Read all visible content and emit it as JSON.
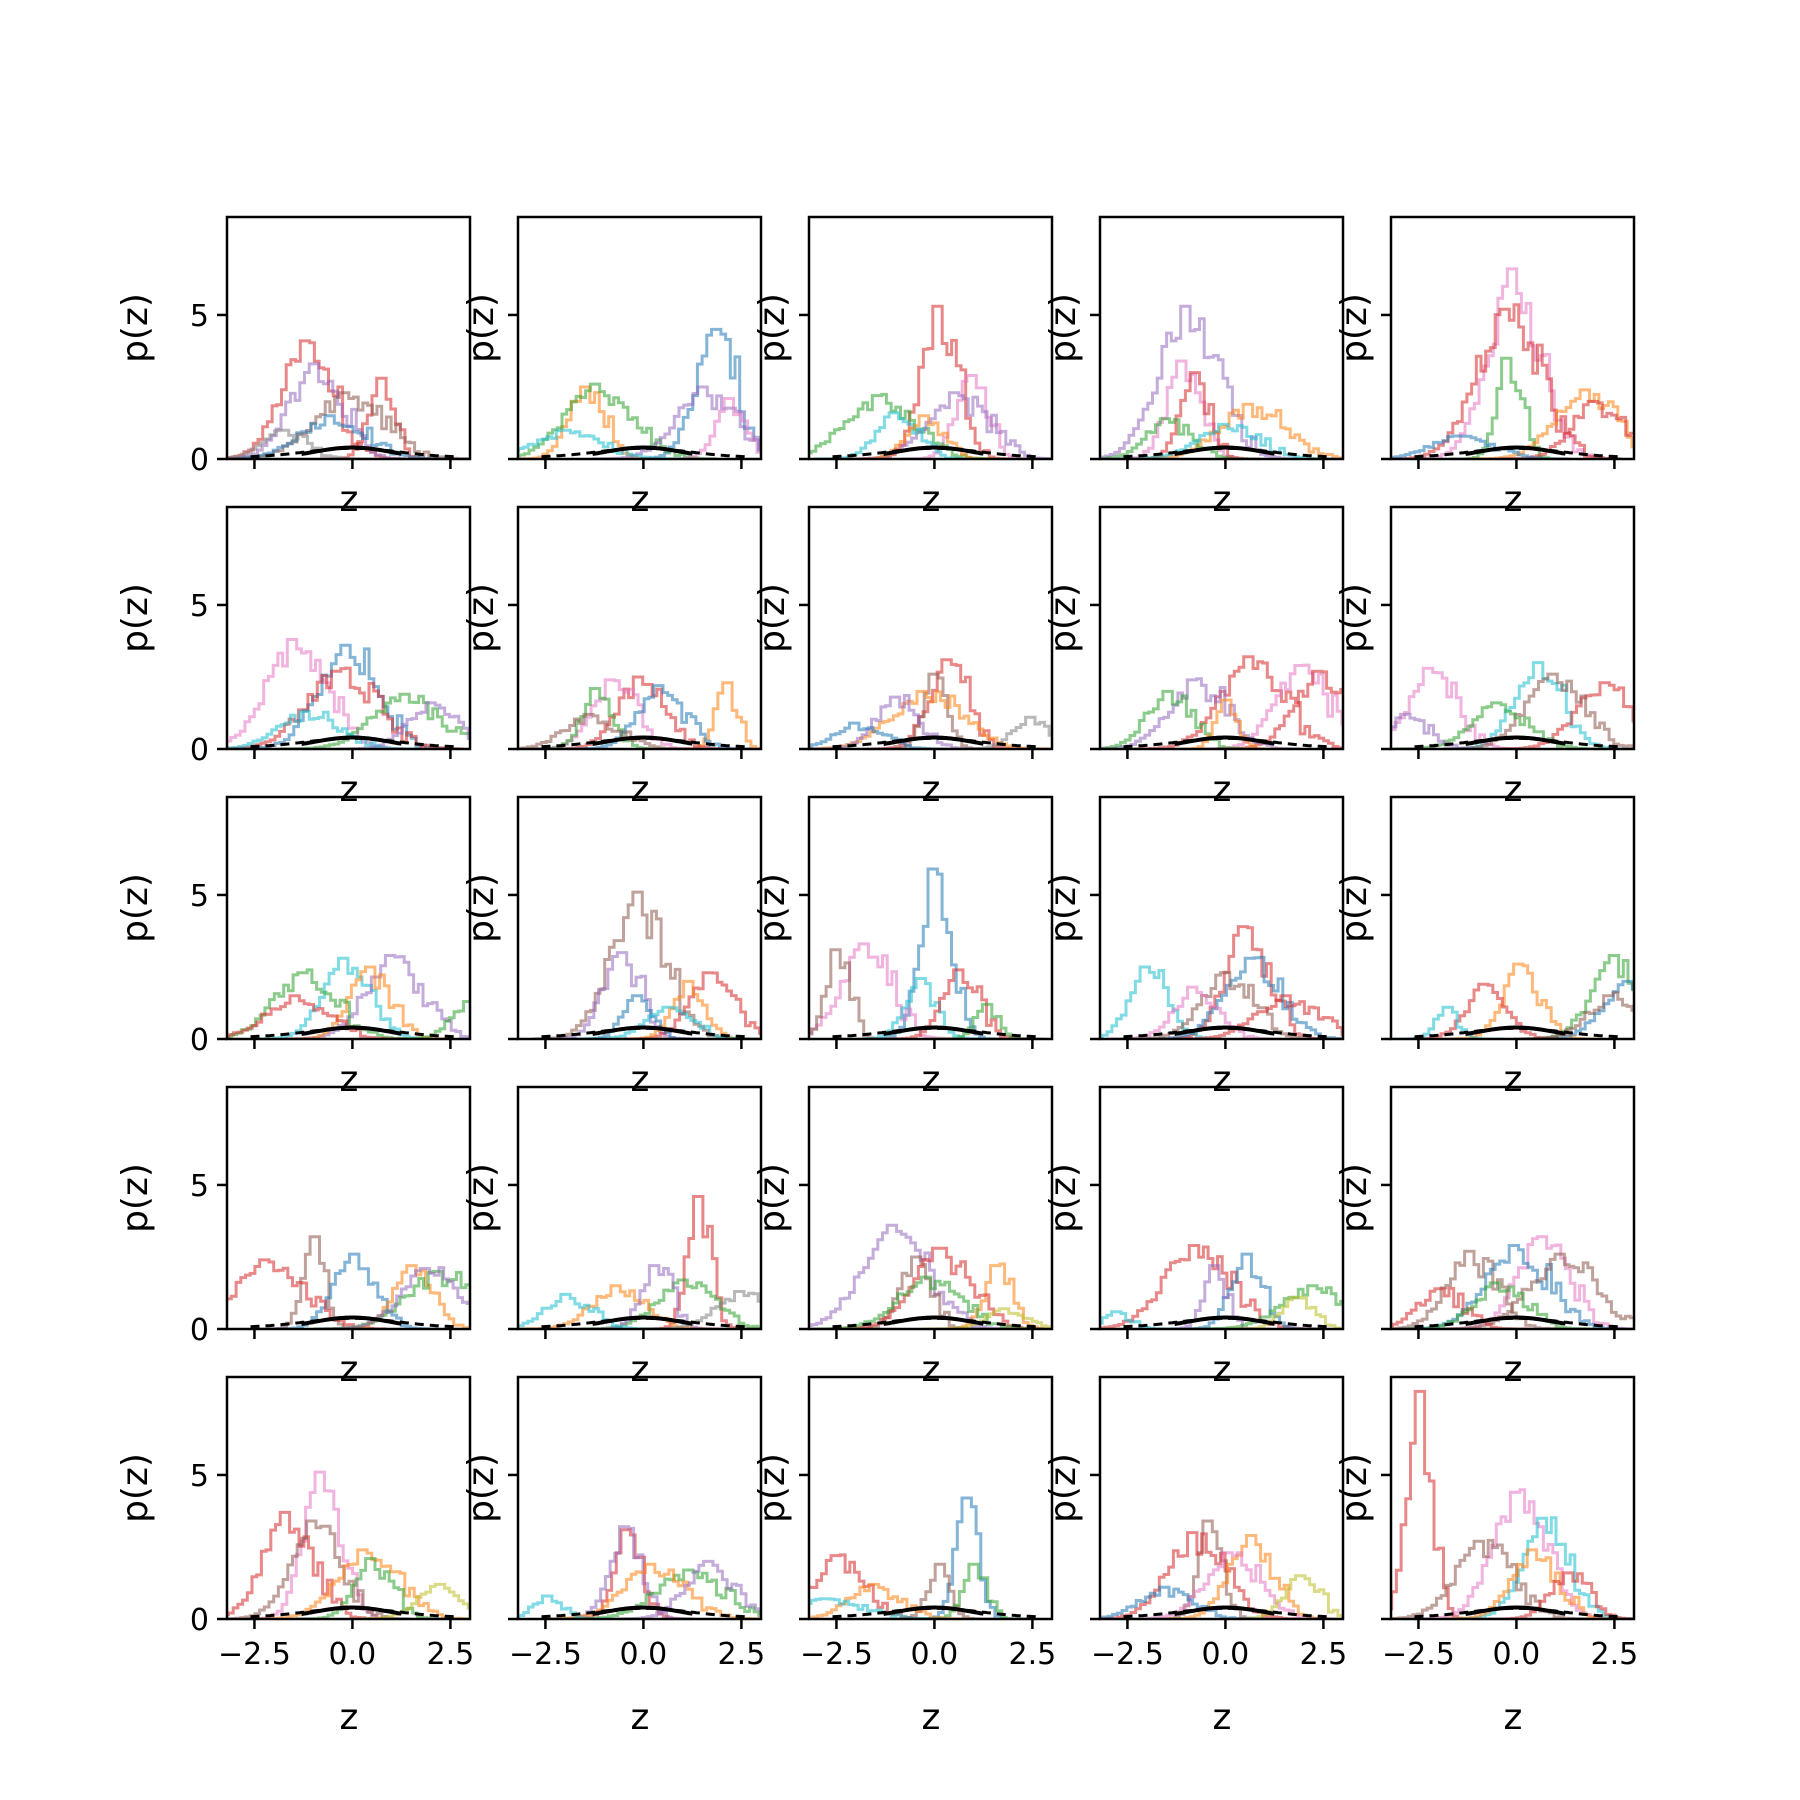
{
  "figure": {
    "rows": 5,
    "cols": 5,
    "xlabel": "z",
    "ylabel": "p(z)",
    "xlim": [
      -3.2,
      3.0
    ],
    "ylim": [
      0,
      8.4
    ],
    "xticks": [
      -2.5,
      0.0,
      2.5
    ],
    "xtick_labels": [
      "−2.5",
      "0.0",
      "2.5"
    ],
    "yticks": [
      0,
      5
    ],
    "ytick_labels": [
      "0",
      "5"
    ],
    "colors": [
      "#1f77b4",
      "#ff7f0e",
      "#2ca02c",
      "#d62728",
      "#9467bd",
      "#8c564b",
      "#e377c2",
      "#7f7f7f",
      "#bcbd22",
      "#17becf"
    ],
    "reference_curves": [
      {
        "style": "solid",
        "color": "#000000",
        "type": "gaussian",
        "mean": 0.0,
        "sd": 1.0
      },
      {
        "style": "dashed",
        "color": "#000000",
        "type": "dashed-density"
      }
    ]
  },
  "chart_data": {
    "type": "line",
    "description_of_marks": "per-panel semi-transparent step histograms (colored) plus a solid black standard normal and a dashed black density",
    "panels": [
      {
        "peaks": [
          {
            "c": 3,
            "x": -1.2,
            "h": 4.1
          },
          {
            "c": 4,
            "x": -1.0,
            "h": 3.3
          },
          {
            "c": 3,
            "x": 0.7,
            "h": 2.8
          },
          {
            "c": 5,
            "x": -0.2,
            "h": 2.3
          },
          {
            "c": 0,
            "x": -0.6,
            "h": 1.5
          },
          {
            "c": 7,
            "x": -1.8,
            "h": 1.0
          }
        ]
      },
      {
        "peaks": [
          {
            "c": 0,
            "x": 1.8,
            "h": 4.5
          },
          {
            "c": 1,
            "x": -1.5,
            "h": 2.5
          },
          {
            "c": 2,
            "x": -1.2,
            "h": 2.6
          },
          {
            "c": 4,
            "x": 1.5,
            "h": 2.5
          },
          {
            "c": 6,
            "x": 2.2,
            "h": 2.1
          },
          {
            "c": 9,
            "x": -2.0,
            "h": 1.0
          }
        ]
      },
      {
        "peaks": [
          {
            "c": 3,
            "x": 0.1,
            "h": 5.3
          },
          {
            "c": 6,
            "x": 0.9,
            "h": 2.9
          },
          {
            "c": 2,
            "x": -1.5,
            "h": 2.2
          },
          {
            "c": 4,
            "x": 0.5,
            "h": 2.3
          },
          {
            "c": 9,
            "x": -1.0,
            "h": 1.6
          },
          {
            "c": 1,
            "x": -0.3,
            "h": 1.5
          }
        ]
      },
      {
        "peaks": [
          {
            "c": 4,
            "x": -1.0,
            "h": 5.3
          },
          {
            "c": 6,
            "x": -1.1,
            "h": 3.4
          },
          {
            "c": 3,
            "x": -0.8,
            "h": 3.0
          },
          {
            "c": 1,
            "x": 0.6,
            "h": 1.9
          },
          {
            "c": 2,
            "x": -1.5,
            "h": 1.4
          },
          {
            "c": 9,
            "x": 0.0,
            "h": 1.2
          }
        ]
      },
      {
        "peaks": [
          {
            "c": 6,
            "x": -0.1,
            "h": 6.6
          },
          {
            "c": 3,
            "x": -0.3,
            "h": 5.2
          },
          {
            "c": 2,
            "x": -0.2,
            "h": 3.5
          },
          {
            "c": 1,
            "x": 1.7,
            "h": 2.4
          },
          {
            "c": 3,
            "x": 2.0,
            "h": 2.0
          },
          {
            "c": 0,
            "x": -1.5,
            "h": 0.8
          }
        ]
      },
      {
        "peaks": [
          {
            "c": 6,
            "x": -1.5,
            "h": 3.8
          },
          {
            "c": 0,
            "x": -0.2,
            "h": 3.6
          },
          {
            "c": 3,
            "x": -0.4,
            "h": 2.7
          },
          {
            "c": 2,
            "x": 1.3,
            "h": 1.9
          },
          {
            "c": 4,
            "x": 2.0,
            "h": 1.6
          },
          {
            "c": 9,
            "x": -1.2,
            "h": 1.3
          }
        ]
      },
      {
        "peaks": [
          {
            "c": 1,
            "x": 2.1,
            "h": 2.3
          },
          {
            "c": 3,
            "x": -0.1,
            "h": 2.5
          },
          {
            "c": 6,
            "x": -0.8,
            "h": 2.4
          },
          {
            "c": 2,
            "x": -1.2,
            "h": 2.1
          },
          {
            "c": 0,
            "x": 0.4,
            "h": 2.2
          },
          {
            "c": 5,
            "x": -1.4,
            "h": 1.2
          }
        ]
      },
      {
        "peaks": [
          {
            "c": 3,
            "x": 0.3,
            "h": 3.1
          },
          {
            "c": 5,
            "x": 0.0,
            "h": 2.6
          },
          {
            "c": 1,
            "x": -0.3,
            "h": 2.0
          },
          {
            "c": 4,
            "x": -1.0,
            "h": 1.8
          },
          {
            "c": 7,
            "x": 2.4,
            "h": 1.1
          },
          {
            "c": 0,
            "x": -2.0,
            "h": 0.9
          }
        ]
      },
      {
        "peaks": [
          {
            "c": 3,
            "x": 0.6,
            "h": 3.2
          },
          {
            "c": 6,
            "x": 1.9,
            "h": 2.9
          },
          {
            "c": 3,
            "x": 2.4,
            "h": 2.7
          },
          {
            "c": 4,
            "x": -0.8,
            "h": 2.4
          },
          {
            "c": 2,
            "x": -1.5,
            "h": 2.0
          },
          {
            "c": 1,
            "x": 0.0,
            "h": 1.7
          }
        ]
      },
      {
        "peaks": [
          {
            "c": 9,
            "x": 0.5,
            "h": 3.0
          },
          {
            "c": 6,
            "x": -2.2,
            "h": 2.8
          },
          {
            "c": 3,
            "x": 2.2,
            "h": 2.3
          },
          {
            "c": 5,
            "x": 0.9,
            "h": 2.6
          },
          {
            "c": 2,
            "x": -0.5,
            "h": 1.6
          },
          {
            "c": 4,
            "x": -2.8,
            "h": 1.2
          }
        ]
      },
      {
        "peaks": [
          {
            "c": 9,
            "x": -0.2,
            "h": 2.8
          },
          {
            "c": 4,
            "x": 1.0,
            "h": 2.9
          },
          {
            "c": 1,
            "x": 0.4,
            "h": 2.5
          },
          {
            "c": 2,
            "x": -1.3,
            "h": 2.3
          },
          {
            "c": 3,
            "x": -1.5,
            "h": 1.5
          },
          {
            "c": 2,
            "x": 2.9,
            "h": 1.3
          }
        ]
      },
      {
        "peaks": [
          {
            "c": 5,
            "x": -0.2,
            "h": 5.1
          },
          {
            "c": 4,
            "x": -0.6,
            "h": 3.0
          },
          {
            "c": 3,
            "x": 1.7,
            "h": 2.3
          },
          {
            "c": 1,
            "x": 1.1,
            "h": 2.0
          },
          {
            "c": 0,
            "x": -0.2,
            "h": 1.5
          },
          {
            "c": 9,
            "x": 0.6,
            "h": 1.1
          }
        ]
      },
      {
        "peaks": [
          {
            "c": 0,
            "x": 0.0,
            "h": 5.9
          },
          {
            "c": 6,
            "x": -1.8,
            "h": 3.3
          },
          {
            "c": 5,
            "x": -2.5,
            "h": 3.1
          },
          {
            "c": 9,
            "x": -0.4,
            "h": 2.1
          },
          {
            "c": 3,
            "x": 0.6,
            "h": 2.4
          },
          {
            "c": 2,
            "x": 1.3,
            "h": 1.2
          }
        ]
      },
      {
        "peaks": [
          {
            "c": 3,
            "x": 0.5,
            "h": 3.9
          },
          {
            "c": 9,
            "x": -2.0,
            "h": 2.5
          },
          {
            "c": 0,
            "x": 0.6,
            "h": 2.8
          },
          {
            "c": 5,
            "x": 0.0,
            "h": 2.3
          },
          {
            "c": 6,
            "x": -0.8,
            "h": 1.8
          },
          {
            "c": 3,
            "x": 1.5,
            "h": 1.5
          }
        ]
      },
      {
        "peaks": [
          {
            "c": 2,
            "x": 2.5,
            "h": 2.9
          },
          {
            "c": 1,
            "x": 0.1,
            "h": 2.6
          },
          {
            "c": 0,
            "x": 2.8,
            "h": 2.0
          },
          {
            "c": 3,
            "x": -0.8,
            "h": 1.9
          },
          {
            "c": 5,
            "x": 2.4,
            "h": 1.5
          },
          {
            "c": 9,
            "x": -1.8,
            "h": 1.1
          }
        ]
      },
      {
        "peaks": [
          {
            "c": 5,
            "x": -1.0,
            "h": 3.2
          },
          {
            "c": 0,
            "x": 0.0,
            "h": 2.6
          },
          {
            "c": 3,
            "x": -2.2,
            "h": 2.4
          },
          {
            "c": 1,
            "x": 1.5,
            "h": 2.2
          },
          {
            "c": 2,
            "x": 2.2,
            "h": 2.0
          },
          {
            "c": 4,
            "x": 1.9,
            "h": 2.1
          }
        ]
      },
      {
        "peaks": [
          {
            "c": 3,
            "x": 1.4,
            "h": 4.6
          },
          {
            "c": 2,
            "x": 1.0,
            "h": 1.7
          },
          {
            "c": 1,
            "x": -0.7,
            "h": 1.5
          },
          {
            "c": 4,
            "x": 0.3,
            "h": 2.2
          },
          {
            "c": 9,
            "x": -2.0,
            "h": 1.2
          },
          {
            "c": 7,
            "x": 2.5,
            "h": 1.3
          }
        ]
      },
      {
        "peaks": [
          {
            "c": 4,
            "x": -1.1,
            "h": 3.6
          },
          {
            "c": 1,
            "x": 1.6,
            "h": 2.2
          },
          {
            "c": 5,
            "x": -0.5,
            "h": 2.5
          },
          {
            "c": 3,
            "x": 0.1,
            "h": 2.8
          },
          {
            "c": 2,
            "x": -0.2,
            "h": 1.8
          },
          {
            "c": 8,
            "x": 1.8,
            "h": 0.7
          }
        ]
      },
      {
        "peaks": [
          {
            "c": 3,
            "x": -0.8,
            "h": 2.9
          },
          {
            "c": 0,
            "x": 0.5,
            "h": 2.6
          },
          {
            "c": 4,
            "x": -0.3,
            "h": 2.2
          },
          {
            "c": 2,
            "x": 2.2,
            "h": 1.5
          },
          {
            "c": 8,
            "x": 1.8,
            "h": 1.1
          },
          {
            "c": 9,
            "x": -2.8,
            "h": 0.6
          }
        ]
      },
      {
        "peaks": [
          {
            "c": 6,
            "x": 0.6,
            "h": 3.2
          },
          {
            "c": 5,
            "x": -1.2,
            "h": 2.7
          },
          {
            "c": 0,
            "x": -0.1,
            "h": 2.9
          },
          {
            "c": 5,
            "x": 1.1,
            "h": 2.6
          },
          {
            "c": 3,
            "x": -2.0,
            "h": 1.4
          },
          {
            "c": 2,
            "x": -0.5,
            "h": 1.6
          }
        ]
      },
      {
        "peaks": [
          {
            "c": 6,
            "x": -0.8,
            "h": 5.1
          },
          {
            "c": 3,
            "x": -1.7,
            "h": 3.7
          },
          {
            "c": 5,
            "x": -1.0,
            "h": 3.4
          },
          {
            "c": 1,
            "x": 0.3,
            "h": 2.4
          },
          {
            "c": 2,
            "x": 0.5,
            "h": 2.1
          },
          {
            "c": 8,
            "x": 2.2,
            "h": 1.2
          }
        ]
      },
      {
        "peaks": [
          {
            "c": 3,
            "x": -0.4,
            "h": 3.1
          },
          {
            "c": 4,
            "x": -0.5,
            "h": 3.2
          },
          {
            "c": 2,
            "x": 1.1,
            "h": 1.7
          },
          {
            "c": 1,
            "x": 0.2,
            "h": 1.9
          },
          {
            "c": 4,
            "x": 1.6,
            "h": 2.0
          },
          {
            "c": 9,
            "x": -2.5,
            "h": 0.8
          }
        ]
      },
      {
        "peaks": [
          {
            "c": 0,
            "x": 0.8,
            "h": 4.2
          },
          {
            "c": 3,
            "x": -2.5,
            "h": 2.2
          },
          {
            "c": 5,
            "x": 0.1,
            "h": 1.9
          },
          {
            "c": 2,
            "x": 1.0,
            "h": 1.9
          },
          {
            "c": 1,
            "x": -1.6,
            "h": 1.2
          },
          {
            "c": 9,
            "x": -2.8,
            "h": 0.7
          }
        ]
      },
      {
        "peaks": [
          {
            "c": 5,
            "x": -0.4,
            "h": 3.4
          },
          {
            "c": 3,
            "x": -0.8,
            "h": 3.0
          },
          {
            "c": 1,
            "x": 0.6,
            "h": 2.9
          },
          {
            "c": 6,
            "x": 0.1,
            "h": 2.3
          },
          {
            "c": 8,
            "x": 1.9,
            "h": 1.5
          },
          {
            "c": 0,
            "x": -1.6,
            "h": 1.1
          }
        ]
      },
      {
        "peaks": [
          {
            "c": 3,
            "x": -2.5,
            "h": 7.9
          },
          {
            "c": 6,
            "x": 0.0,
            "h": 4.4
          },
          {
            "c": 9,
            "x": 0.7,
            "h": 3.5
          },
          {
            "c": 5,
            "x": -0.9,
            "h": 2.7
          },
          {
            "c": 1,
            "x": 0.4,
            "h": 2.4
          },
          {
            "c": 3,
            "x": 1.3,
            "h": 1.6
          }
        ]
      }
    ]
  }
}
